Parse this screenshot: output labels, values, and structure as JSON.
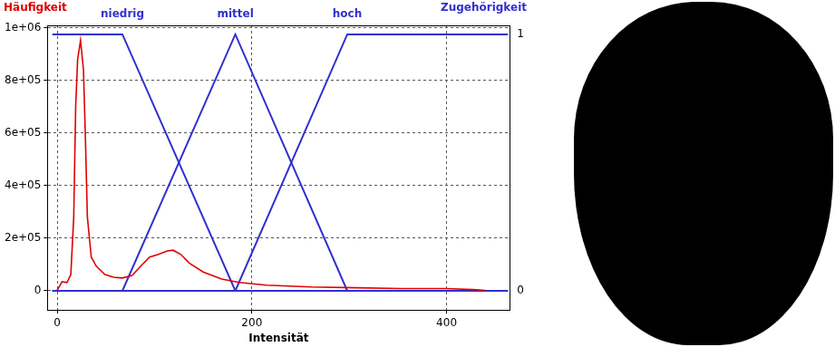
{
  "chart_data": {
    "type": "line",
    "x_label": "Intensität",
    "y_label": "Häufigkeit",
    "y2_label": "Zugehörigkeit",
    "xlim": [
      -10,
      465
    ],
    "xticks": [
      0,
      200,
      400
    ],
    "ylim": [
      -75000,
      1010000
    ],
    "yticks": [
      0,
      {
        "value": 200000,
        "label": "2e+05"
      },
      {
        "value": 400000,
        "label": "4e+05"
      },
      {
        "value": 600000,
        "label": "6e+05"
      },
      {
        "value": 800000,
        "label": "8e+05"
      },
      {
        "value": 1000000,
        "label": "1e+06"
      }
    ],
    "y2lim": [
      -0.075,
      1.035
    ],
    "y2ticks": [
      0,
      1
    ],
    "grid": true,
    "series": [
      {
        "color": "#e00000",
        "x": [
          0,
          5,
          10,
          14,
          17,
          19,
          21,
          24,
          27,
          29,
          31,
          35,
          40,
          49,
          58,
          67,
          77,
          86,
          95,
          104,
          113,
          119,
          127,
          136,
          150,
          169,
          187,
          215,
          261,
          307,
          353,
          399,
          427,
          440
        ],
        "values": [
          0,
          33000,
          30000,
          60000,
          280000,
          700000,
          880000,
          953000,
          840000,
          580000,
          280000,
          127000,
          93000,
          60000,
          50000,
          47000,
          57000,
          93000,
          127000,
          137000,
          150000,
          153000,
          137000,
          103000,
          70000,
          43000,
          30000,
          20000,
          13000,
          10000,
          7000,
          7000,
          3000,
          0
        ]
      },
      {
        "name": "niedrig",
        "color": "#3030d0",
        "axis": "y2",
        "x": [
          -5,
          67,
          183,
          463
        ],
        "values": [
          1,
          1,
          0,
          0
        ]
      },
      {
        "name": "mittel",
        "color": "#3030d0",
        "axis": "y2",
        "x": [
          -5,
          67,
          183,
          298,
          463
        ],
        "values": [
          0,
          0,
          1,
          0,
          0
        ]
      },
      {
        "name": "hoch",
        "color": "#3030d0",
        "axis": "y2",
        "x": [
          -5,
          183,
          298,
          463
        ],
        "values": [
          0,
          0,
          1,
          1
        ]
      }
    ]
  }
}
